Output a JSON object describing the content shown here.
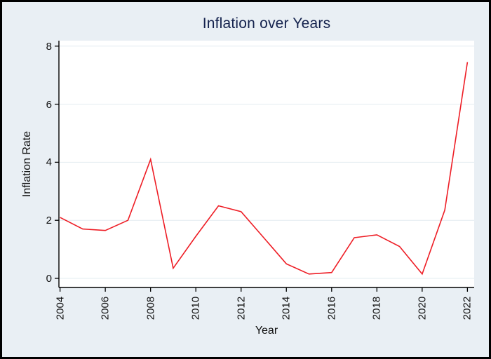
{
  "frame": {
    "border_color": "#000000",
    "background": "#e9eff4"
  },
  "chart_data": {
    "type": "line",
    "title": "Inflation over Years",
    "xlabel": "Year",
    "ylabel": "Inflation Rate",
    "x": [
      2004,
      2005,
      2006,
      2007,
      2008,
      2009,
      2010,
      2011,
      2012,
      2013,
      2014,
      2015,
      2016,
      2017,
      2018,
      2019,
      2020,
      2021,
      2022
    ],
    "values": [
      2.1,
      1.7,
      1.65,
      2.0,
      4.1,
      0.35,
      1.45,
      2.5,
      2.3,
      1.4,
      0.5,
      0.15,
      0.2,
      1.4,
      1.5,
      1.1,
      0.15,
      2.35,
      7.45
    ],
    "xticks": [
      2004,
      2006,
      2008,
      2010,
      2012,
      2014,
      2016,
      2018,
      2020,
      2022
    ],
    "yticks": [
      0,
      2,
      4,
      6,
      8
    ],
    "ylim": [
      0,
      8
    ],
    "xtick_rotation": -90,
    "grid": "horizontal",
    "legend": "none",
    "colors": {
      "line": "#ee1d25",
      "title": "#14224d",
      "plot_bg": "#ffffff",
      "grid": "#e3ecf0",
      "axis": "#000000",
      "text": "#111111"
    }
  }
}
